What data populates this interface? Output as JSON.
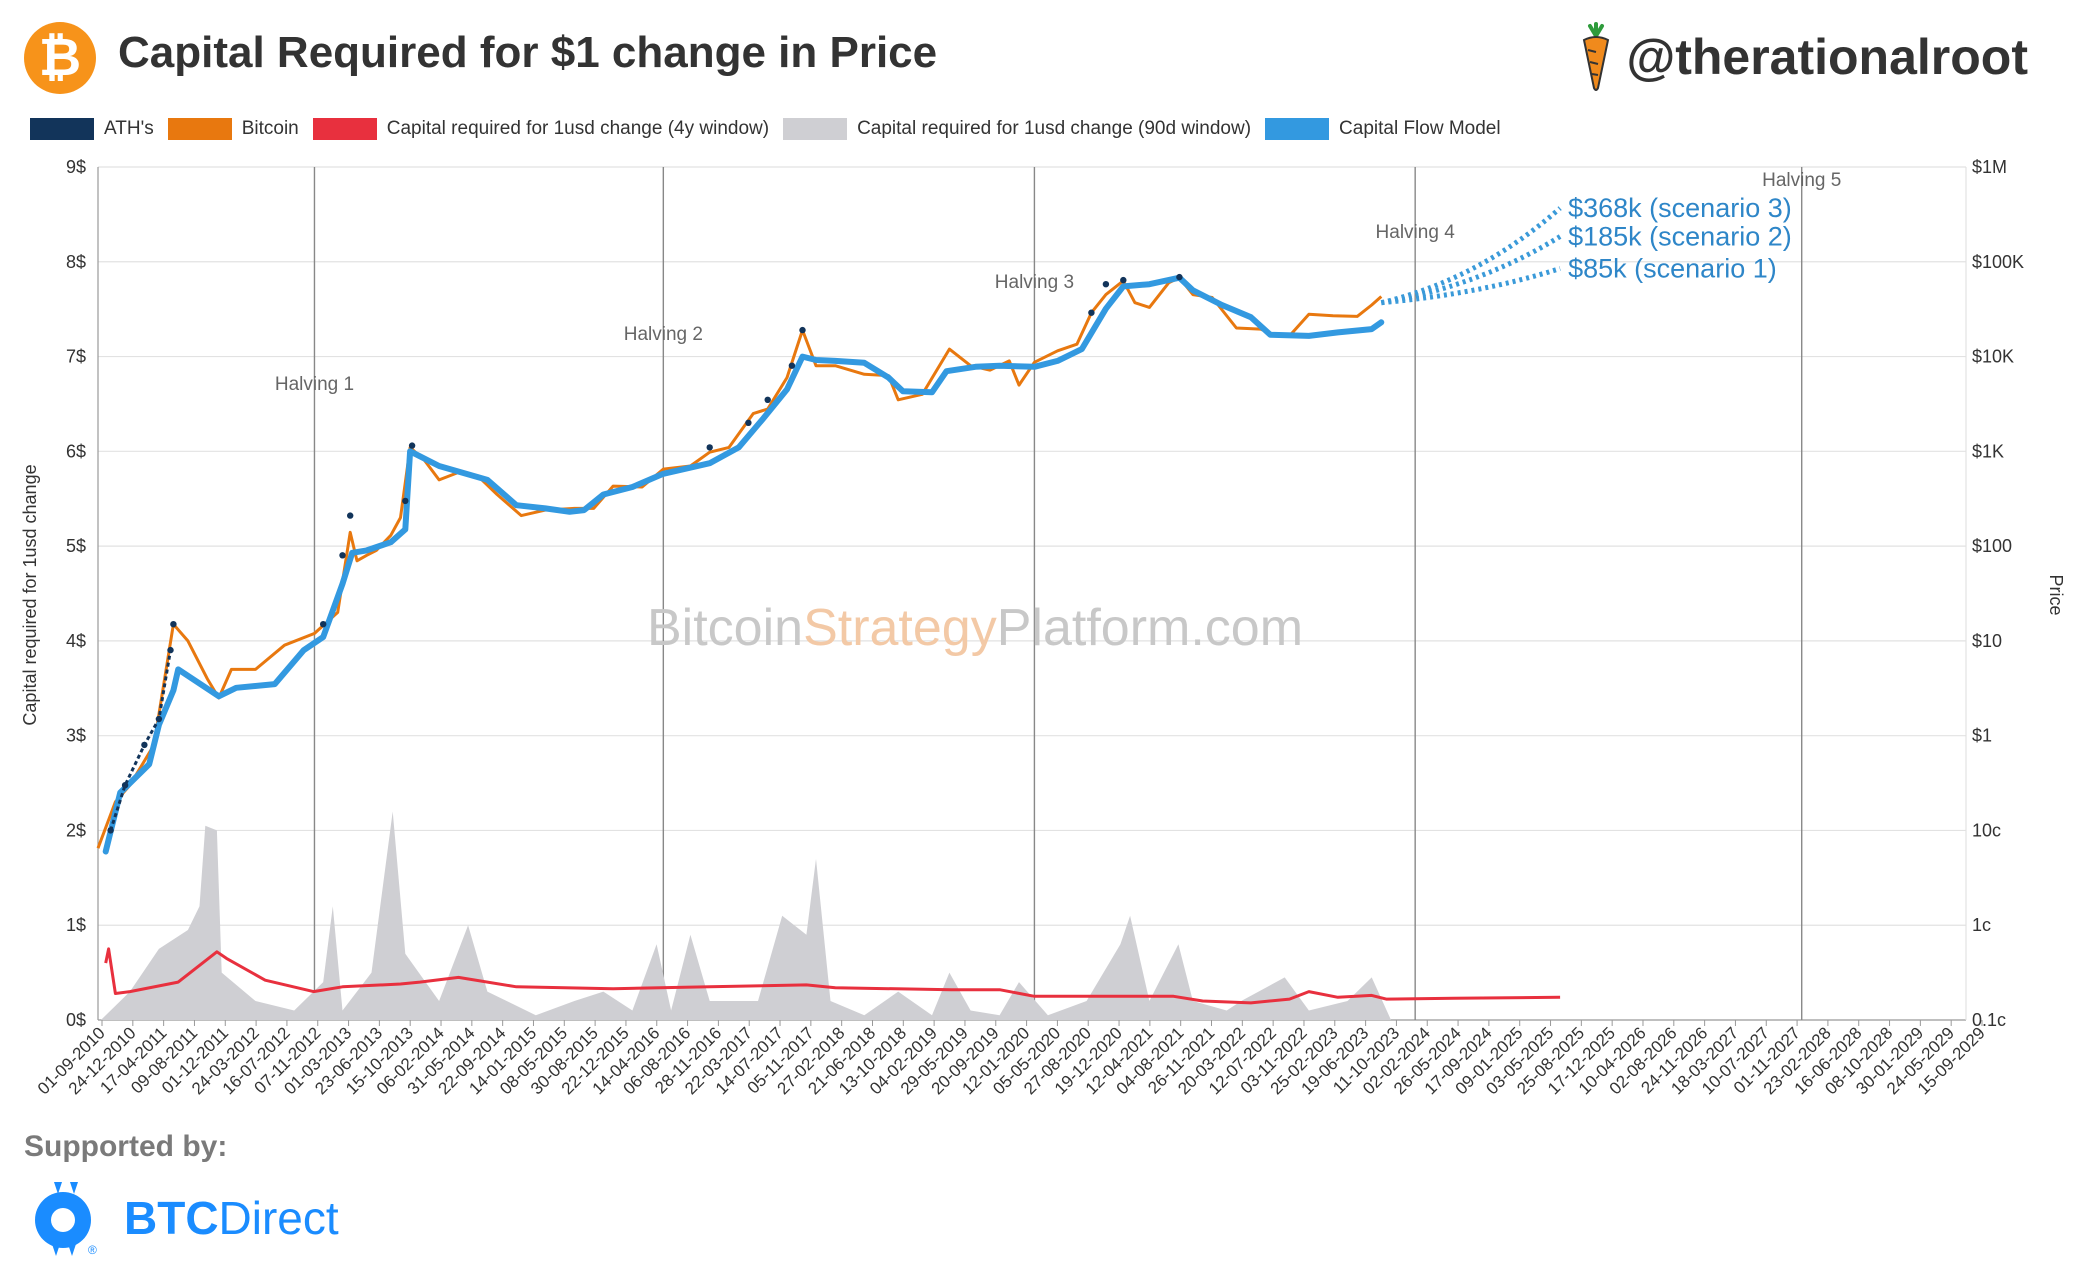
{
  "header": {
    "title": "Capital Required for $1 change in Price",
    "logo_symbol": "₿",
    "handle": "@therationalroot"
  },
  "legend": [
    {
      "label": "ATH's",
      "color": "#12345a"
    },
    {
      "label": "Bitcoin",
      "color": "#e8780f"
    },
    {
      "label": "Capital required for 1usd change (4y window)",
      "color": "#e8303e"
    },
    {
      "label": "Capital required for 1usd change (90d window)",
      "color": "#cfcfd3"
    },
    {
      "label": "Capital Flow Model",
      "color": "#3399e0"
    }
  ],
  "footer": {
    "supported_label": "Supported by:",
    "sponsor_prefix": "BTC",
    "sponsor_suffix": "Direct",
    "sponsor_mark": "®"
  },
  "chart_data": {
    "type": "line",
    "watermark": {
      "part1": "Bitcoin",
      "part2": "Strategy",
      "part3": "Platform.com"
    },
    "left_axis": {
      "label": "Capital required for 1usd change",
      "ticks": [
        "0$",
        "1$",
        "2$",
        "3$",
        "4$",
        "5$",
        "6$",
        "7$",
        "8$",
        "9$"
      ],
      "ylim": [
        0,
        9
      ]
    },
    "right_axis": {
      "label": "Price",
      "ticks": [
        "0.1c",
        "1c",
        "10c",
        "$1",
        "$10",
        "$100",
        "$1K",
        "$10K",
        "$100K",
        "$1M"
      ],
      "scale": "log",
      "ylim": [
        0.001,
        1000000
      ]
    },
    "x_range_years": [
      2010.67,
      2030.0
    ],
    "x_tick_labels": [
      "01-09-2010",
      "24-12-2010",
      "17-04-2011",
      "09-08-2011",
      "01-12-2011",
      "24-03-2012",
      "16-07-2012",
      "07-11-2012",
      "01-03-2013",
      "23-06-2013",
      "15-10-2013",
      "06-02-2014",
      "31-05-2014",
      "22-09-2014",
      "14-01-2015",
      "08-05-2015",
      "30-08-2015",
      "22-12-2015",
      "14-04-2016",
      "06-08-2016",
      "28-11-2016",
      "22-03-2017",
      "14-07-2017",
      "05-11-2017",
      "27-02-2018",
      "21-06-2018",
      "13-10-2018",
      "04-02-2019",
      "29-05-2019",
      "20-09-2019",
      "12-01-2020",
      "05-05-2020",
      "27-08-2020",
      "19-12-2020",
      "12-04-2021",
      "04-08-2021",
      "26-11-2021",
      "20-03-2022",
      "12-07-2022",
      "03-11-2022",
      "25-02-2023",
      "19-06-2023",
      "11-10-2023",
      "02-02-2024",
      "26-05-2024",
      "17-09-2024",
      "09-01-2025",
      "03-05-2025",
      "25-08-2025",
      "17-12-2025",
      "10-04-2026",
      "02-08-2026",
      "24-11-2026",
      "18-03-2027",
      "10-07-2027",
      "01-11-2027",
      "23-02-2028",
      "16-06-2028",
      "08-10-2028",
      "30-01-2029",
      "24-05-2029",
      "15-09-2029"
    ],
    "halvings": [
      {
        "label": "Halving 1",
        "year": 2012.91
      },
      {
        "label": "Halving 2",
        "year": 2016.52
      },
      {
        "label": "Halving 3",
        "year": 2020.36
      },
      {
        "label": "Halving 4",
        "year": 2024.3
      },
      {
        "label": "Halving 5",
        "year": 2028.3
      }
    ],
    "scenarios": [
      {
        "label": "$368k (scenario 3)",
        "target": 368000
      },
      {
        "label": "$185k (scenario 2)",
        "target": 185000
      },
      {
        "label": "$85k (scenario 1)",
        "target": 85000
      }
    ],
    "projection_range": {
      "start_year": 2023.95,
      "start_price": 37000,
      "end_year": 2025.8
    },
    "series": [
      {
        "name": "Bitcoin",
        "unit": "usd",
        "points": [
          [
            2010.67,
            0.065
          ],
          [
            2010.85,
            0.2
          ],
          [
            2011.0,
            0.3
          ],
          [
            2011.25,
            0.8
          ],
          [
            2011.45,
            15
          ],
          [
            2011.6,
            10
          ],
          [
            2011.8,
            4
          ],
          [
            2011.92,
            2.5
          ],
          [
            2012.05,
            5
          ],
          [
            2012.3,
            5
          ],
          [
            2012.6,
            9
          ],
          [
            2012.91,
            12
          ],
          [
            2013.15,
            20
          ],
          [
            2013.28,
            140
          ],
          [
            2013.35,
            70
          ],
          [
            2013.45,
            80
          ],
          [
            2013.55,
            90
          ],
          [
            2013.7,
            130
          ],
          [
            2013.8,
            200
          ],
          [
            2013.9,
            1100
          ],
          [
            2014.05,
            800
          ],
          [
            2014.2,
            500
          ],
          [
            2014.4,
            600
          ],
          [
            2014.6,
            550
          ],
          [
            2014.8,
            350
          ],
          [
            2015.05,
            210
          ],
          [
            2015.3,
            240
          ],
          [
            2015.6,
            250
          ],
          [
            2015.8,
            250
          ],
          [
            2016.0,
            430
          ],
          [
            2016.3,
            420
          ],
          [
            2016.52,
            650
          ],
          [
            2016.8,
            700
          ],
          [
            2017.0,
            980
          ],
          [
            2017.2,
            1100
          ],
          [
            2017.45,
            2500
          ],
          [
            2017.6,
            2800
          ],
          [
            2017.8,
            6000
          ],
          [
            2017.96,
            19000
          ],
          [
            2018.1,
            8000
          ],
          [
            2018.3,
            8000
          ],
          [
            2018.6,
            6500
          ],
          [
            2018.85,
            6300
          ],
          [
            2018.95,
            3500
          ],
          [
            2019.2,
            4000
          ],
          [
            2019.48,
            12000
          ],
          [
            2019.7,
            8000
          ],
          [
            2019.9,
            7200
          ],
          [
            2020.1,
            9000
          ],
          [
            2020.2,
            5000
          ],
          [
            2020.36,
            8700
          ],
          [
            2020.6,
            11500
          ],
          [
            2020.8,
            13500
          ],
          [
            2020.95,
            29000
          ],
          [
            2021.1,
            45000
          ],
          [
            2021.28,
            63000
          ],
          [
            2021.4,
            37000
          ],
          [
            2021.55,
            33000
          ],
          [
            2021.75,
            60000
          ],
          [
            2021.86,
            68000
          ],
          [
            2022.0,
            45000
          ],
          [
            2022.2,
            42000
          ],
          [
            2022.45,
            20000
          ],
          [
            2022.7,
            19500
          ],
          [
            2022.88,
            16500
          ],
          [
            2023.0,
            16500
          ],
          [
            2023.2,
            28000
          ],
          [
            2023.45,
            27000
          ],
          [
            2023.7,
            26500
          ],
          [
            2023.85,
            35000
          ],
          [
            2023.95,
            43000
          ]
        ]
      },
      {
        "name": "Capital Flow Model",
        "unit": "usd",
        "points": [
          [
            2010.75,
            0.06
          ],
          [
            2010.9,
            0.25
          ],
          [
            2011.2,
            0.5
          ],
          [
            2011.3,
            1.3
          ],
          [
            2011.45,
            3
          ],
          [
            2011.5,
            5
          ],
          [
            2011.92,
            2.6
          ],
          [
            2012.1,
            3.2
          ],
          [
            2012.5,
            3.5
          ],
          [
            2012.8,
            8
          ],
          [
            2013.0,
            11
          ],
          [
            2013.2,
            40
          ],
          [
            2013.3,
            85
          ],
          [
            2013.45,
            90
          ],
          [
            2013.7,
            110
          ],
          [
            2013.85,
            150
          ],
          [
            2013.9,
            1000
          ],
          [
            2014.2,
            700
          ],
          [
            2014.7,
            500
          ],
          [
            2015.0,
            270
          ],
          [
            2015.3,
            250
          ],
          [
            2015.55,
            230
          ],
          [
            2015.7,
            240
          ],
          [
            2015.9,
            350
          ],
          [
            2016.2,
            420
          ],
          [
            2016.52,
            580
          ],
          [
            2017.0,
            750
          ],
          [
            2017.3,
            1100
          ],
          [
            2017.55,
            2200
          ],
          [
            2017.8,
            4500
          ],
          [
            2017.96,
            10000
          ],
          [
            2018.1,
            9200
          ],
          [
            2018.3,
            9000
          ],
          [
            2018.6,
            8600
          ],
          [
            2018.85,
            6000
          ],
          [
            2019.0,
            4300
          ],
          [
            2019.3,
            4200
          ],
          [
            2019.45,
            7000
          ],
          [
            2019.75,
            7800
          ],
          [
            2020.0,
            8000
          ],
          [
            2020.36,
            7800
          ],
          [
            2020.6,
            9000
          ],
          [
            2020.85,
            12000
          ],
          [
            2021.1,
            32000
          ],
          [
            2021.28,
            55000
          ],
          [
            2021.55,
            58000
          ],
          [
            2021.86,
            68000
          ],
          [
            2022.0,
            50000
          ],
          [
            2022.3,
            35000
          ],
          [
            2022.6,
            26000
          ],
          [
            2022.8,
            17000
          ],
          [
            2023.2,
            16500
          ],
          [
            2023.5,
            18000
          ],
          [
            2023.85,
            19500
          ],
          [
            2023.95,
            23000
          ]
        ]
      },
      {
        "name": "ATH's",
        "unit": "usd",
        "points": [
          [
            2010.8,
            0.1
          ],
          [
            2010.95,
            0.3
          ],
          [
            2011.15,
            0.8
          ],
          [
            2011.3,
            1.5
          ],
          [
            2011.42,
            8
          ],
          [
            2011.45,
            15
          ],
          [
            2013.0,
            15
          ],
          [
            2013.2,
            80
          ],
          [
            2013.28,
            210
          ],
          [
            2013.85,
            300
          ],
          [
            2013.92,
            1150
          ],
          [
            2017.0,
            1100
          ],
          [
            2017.4,
            2000
          ],
          [
            2017.6,
            3500
          ],
          [
            2017.85,
            8000
          ],
          [
            2017.96,
            19000
          ],
          [
            2020.95,
            29000
          ],
          [
            2021.1,
            58000
          ],
          [
            2021.28,
            64000
          ],
          [
            2021.86,
            69000
          ]
        ]
      },
      {
        "name": "Capital required for 1usd change (4y window)",
        "unit": "dollars",
        "points": [
          [
            2010.75,
            0.6
          ],
          [
            2010.78,
            0.75
          ],
          [
            2010.85,
            0.28
          ],
          [
            2011.0,
            0.3
          ],
          [
            2011.5,
            0.4
          ],
          [
            2011.9,
            0.72
          ],
          [
            2012.0,
            0.65
          ],
          [
            2012.4,
            0.42
          ],
          [
            2012.9,
            0.3
          ],
          [
            2013.2,
            0.35
          ],
          [
            2013.8,
            0.38
          ],
          [
            2014.0,
            0.4
          ],
          [
            2014.4,
            0.45
          ],
          [
            2015.0,
            0.35
          ],
          [
            2016.0,
            0.33
          ],
          [
            2017.0,
            0.35
          ],
          [
            2018.0,
            0.37
          ],
          [
            2018.3,
            0.34
          ],
          [
            2019.5,
            0.32
          ],
          [
            2020.0,
            0.32
          ],
          [
            2020.36,
            0.25
          ],
          [
            2021.0,
            0.25
          ],
          [
            2021.8,
            0.25
          ],
          [
            2022.1,
            0.2
          ],
          [
            2022.6,
            0.18
          ],
          [
            2023.0,
            0.22
          ],
          [
            2023.2,
            0.3
          ],
          [
            2023.5,
            0.24
          ],
          [
            2023.85,
            0.26
          ],
          [
            2024.0,
            0.22
          ],
          [
            2024.7,
            0.23
          ],
          [
            2025.8,
            0.24
          ]
        ]
      },
      {
        "name": "Capital required for 1usd change (90d window)",
        "unit": "dollars",
        "points": [
          [
            2010.7,
            0.0
          ],
          [
            2011.0,
            0.3
          ],
          [
            2011.3,
            0.75
          ],
          [
            2011.6,
            0.95
          ],
          [
            2011.72,
            1.2
          ],
          [
            2011.78,
            2.05
          ],
          [
            2011.9,
            2.0
          ],
          [
            2011.95,
            0.5
          ],
          [
            2012.3,
            0.2
          ],
          [
            2012.7,
            0.1
          ],
          [
            2013.0,
            0.4
          ],
          [
            2013.1,
            1.2
          ],
          [
            2013.2,
            0.1
          ],
          [
            2013.5,
            0.5
          ],
          [
            2013.72,
            2.2
          ],
          [
            2013.85,
            0.7
          ],
          [
            2014.2,
            0.2
          ],
          [
            2014.5,
            1.0
          ],
          [
            2014.7,
            0.3
          ],
          [
            2015.2,
            0.05
          ],
          [
            2015.6,
            0.2
          ],
          [
            2015.9,
            0.3
          ],
          [
            2016.2,
            0.1
          ],
          [
            2016.45,
            0.8
          ],
          [
            2016.6,
            0.1
          ],
          [
            2016.8,
            0.9
          ],
          [
            2017.0,
            0.2
          ],
          [
            2017.5,
            0.2
          ],
          [
            2017.75,
            1.1
          ],
          [
            2018.0,
            0.9
          ],
          [
            2018.1,
            1.7
          ],
          [
            2018.25,
            0.2
          ],
          [
            2018.6,
            0.05
          ],
          [
            2018.95,
            0.3
          ],
          [
            2019.3,
            0.05
          ],
          [
            2019.48,
            0.5
          ],
          [
            2019.7,
            0.1
          ],
          [
            2020.0,
            0.05
          ],
          [
            2020.2,
            0.4
          ],
          [
            2020.5,
            0.05
          ],
          [
            2020.9,
            0.2
          ],
          [
            2021.25,
            0.8
          ],
          [
            2021.35,
            1.1
          ],
          [
            2021.55,
            0.2
          ],
          [
            2021.85,
            0.8
          ],
          [
            2022.0,
            0.2
          ],
          [
            2022.35,
            0.1
          ],
          [
            2022.5,
            0.2
          ],
          [
            2022.95,
            0.45
          ],
          [
            2023.2,
            0.1
          ],
          [
            2023.6,
            0.2
          ],
          [
            2023.85,
            0.45
          ],
          [
            2024.05,
            0.0
          ]
        ]
      }
    ]
  }
}
